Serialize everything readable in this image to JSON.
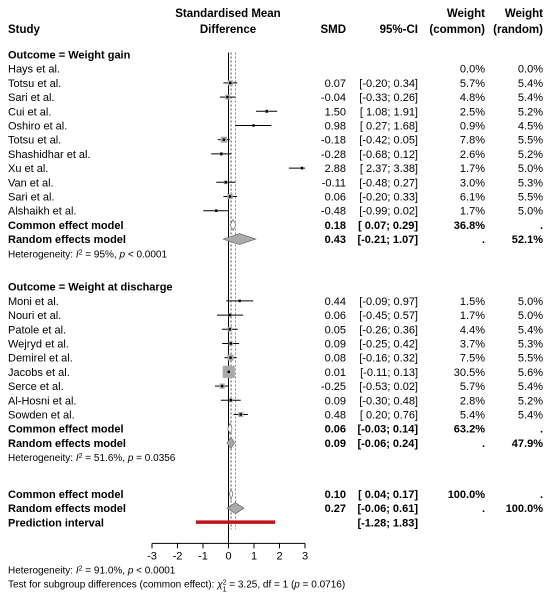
{
  "chart_data": {
    "type": "forest",
    "headers": {
      "study": "Study",
      "effect_line1": "Standardised Mean",
      "effect_line2": "Difference",
      "smd": "SMD",
      "ci": "95%-CI",
      "w_common_line1": "Weight",
      "w_common_line2": "(common)",
      "w_random_line1": "Weight",
      "w_random_line2": "(random)"
    },
    "x_axis": {
      "min": -3,
      "max": 3,
      "ticks": [
        -3,
        -2,
        -1,
        0,
        1,
        2,
        3
      ],
      "tick_label_text": "-3 -2 -1 0 1 2 3",
      "tick_label_note": "overlapping tick labels as rendered: \"-3 0.001-1 0 1 2 3\""
    },
    "groups": [
      {
        "label": "Outcome = Weight gain",
        "studies": [
          {
            "name": "Hays et al.",
            "smd": null,
            "lo": null,
            "hi": null,
            "smd_text": "",
            "ci_text": "",
            "w_common": "0.0%",
            "w_random": "0.0%"
          },
          {
            "name": "Totsu et al.",
            "smd": 0.07,
            "lo": -0.2,
            "hi": 0.34,
            "smd_text": "0.07",
            "ci_text": "[-0.20; 0.34]",
            "w_common": "5.7%",
            "w_random": "5.4%"
          },
          {
            "name": "Sari et al.",
            "smd": -0.04,
            "lo": -0.33,
            "hi": 0.26,
            "smd_text": "-0.04",
            "ci_text": "[-0.33; 0.26]",
            "w_common": "4.8%",
            "w_random": "5.4%"
          },
          {
            "name": "Cui et al.",
            "smd": 1.5,
            "lo": 1.08,
            "hi": 1.91,
            "smd_text": "1.50",
            "ci_text": "[ 1.08; 1.91]",
            "w_common": "2.5%",
            "w_random": "5.2%"
          },
          {
            "name": "Oshiro et al.",
            "smd": 0.98,
            "lo": 0.27,
            "hi": 1.68,
            "smd_text": "0.98",
            "ci_text": "[ 0.27; 1.68]",
            "w_common": "0.9%",
            "w_random": "4.5%"
          },
          {
            "name": "Totsu et al.",
            "smd": -0.18,
            "lo": -0.42,
            "hi": 0.05,
            "smd_text": "-0.18",
            "ci_text": "[-0.42; 0.05]",
            "w_common": "7.8%",
            "w_random": "5.5%"
          },
          {
            "name": "Shashidhar et al.",
            "smd": -0.28,
            "lo": -0.68,
            "hi": 0.12,
            "smd_text": "-0.28",
            "ci_text": "[-0.68; 0.12]",
            "w_common": "2.6%",
            "w_random": "5.2%"
          },
          {
            "name": "Xu et al.",
            "smd": 2.88,
            "lo": 2.37,
            "hi": 3.38,
            "smd_text": "2.88",
            "ci_text": "[ 2.37; 3.38]",
            "w_common": "1.7%",
            "w_random": "5.0%"
          },
          {
            "name": "Van et al.",
            "smd": -0.11,
            "lo": -0.48,
            "hi": 0.27,
            "smd_text": "-0.11",
            "ci_text": "[-0.48; 0.27]",
            "w_common": "3.0%",
            "w_random": "5.3%"
          },
          {
            "name": "Sari et al.",
            "smd": 0.06,
            "lo": -0.2,
            "hi": 0.33,
            "smd_text": "0.06",
            "ci_text": "[-0.20; 0.33]",
            "w_common": "6.1%",
            "w_random": "5.5%"
          },
          {
            "name": "Alshaikh et al.",
            "smd": -0.48,
            "lo": -0.99,
            "hi": 0.02,
            "smd_text": "-0.48",
            "ci_text": "[-0.99; 0.02]",
            "w_common": "1.7%",
            "w_random": "5.0%"
          }
        ],
        "common": {
          "label": "Common effect model",
          "smd": 0.18,
          "lo": 0.07,
          "hi": 0.29,
          "smd_text": "0.18",
          "ci_text": "[ 0.07; 0.29]",
          "w_common": "36.8%",
          "w_random": "."
        },
        "random": {
          "label": "Random effects model",
          "smd": 0.43,
          "lo": -0.21,
          "hi": 1.07,
          "smd_text": "0.43",
          "ci_text": "[-0.21; 1.07]",
          "w_common": ".",
          "w_random": "52.1%"
        },
        "heterogeneity": {
          "prefix": "Heterogeneity: ",
          "i2": "I",
          "i2_value": " = 95%, ",
          "p": "p",
          "p_value": " < 0.0001"
        }
      },
      {
        "label": "Outcome = Weight at discharge",
        "studies": [
          {
            "name": "Moni et al.",
            "smd": 0.44,
            "lo": -0.09,
            "hi": 0.97,
            "smd_text": "0.44",
            "ci_text": "[-0.09; 0.97]",
            "w_common": "1.5%",
            "w_random": "5.0%"
          },
          {
            "name": "Nouri et al.",
            "smd": 0.06,
            "lo": -0.45,
            "hi": 0.57,
            "smd_text": "0.06",
            "ci_text": "[-0.45; 0.57]",
            "w_common": "1.7%",
            "w_random": "5.0%"
          },
          {
            "name": "Patole et al.",
            "smd": 0.05,
            "lo": -0.26,
            "hi": 0.36,
            "smd_text": "0.05",
            "ci_text": "[-0.26; 0.36]",
            "w_common": "4.4%",
            "w_random": "5.4%"
          },
          {
            "name": "Wejryd et al.",
            "smd": 0.09,
            "lo": -0.25,
            "hi": 0.42,
            "smd_text": "0.09",
            "ci_text": "[-0.25; 0.42]",
            "w_common": "3.7%",
            "w_random": "5.3%"
          },
          {
            "name": "Demirel et al.",
            "smd": 0.08,
            "lo": -0.16,
            "hi": 0.32,
            "smd_text": "0.08",
            "ci_text": "[-0.16; 0.32]",
            "w_common": "7.5%",
            "w_random": "5.5%"
          },
          {
            "name": "Jacobs et al.",
            "smd": 0.01,
            "lo": -0.11,
            "hi": 0.13,
            "smd_text": "0.01",
            "ci_text": "[-0.11; 0.13]",
            "w_common": "30.5%",
            "w_random": "5.6%"
          },
          {
            "name": "Serce et al.",
            "smd": -0.25,
            "lo": -0.53,
            "hi": 0.02,
            "smd_text": "-0.25",
            "ci_text": "[-0.53; 0.02]",
            "w_common": "5.7%",
            "w_random": "5.4%"
          },
          {
            "name": "Al-Hosni et al.",
            "smd": 0.09,
            "lo": -0.3,
            "hi": 0.48,
            "smd_text": "0.09",
            "ci_text": "[-0.30; 0.48]",
            "w_common": "2.8%",
            "w_random": "5.2%"
          },
          {
            "name": "Sowden et al.",
            "smd": 0.48,
            "lo": 0.2,
            "hi": 0.76,
            "smd_text": "0.48",
            "ci_text": "[ 0.20; 0.76]",
            "w_common": "5.4%",
            "w_random": "5.4%"
          }
        ],
        "common": {
          "label": "Common effect model",
          "smd": 0.06,
          "lo": -0.03,
          "hi": 0.14,
          "smd_text": "0.06",
          "ci_text": "[-0.03; 0.14]",
          "w_common": "63.2%",
          "w_random": "."
        },
        "random": {
          "label": "Random effects model",
          "smd": 0.09,
          "lo": -0.06,
          "hi": 0.24,
          "smd_text": "0.09",
          "ci_text": "[-0.06; 0.24]",
          "w_common": ".",
          "w_random": "47.9%"
        },
        "heterogeneity": {
          "prefix": "Heterogeneity: ",
          "i2": "I",
          "i2_value": " = 51.6%, ",
          "p": "p",
          "p_value": " = 0.0356"
        }
      }
    ],
    "overall": {
      "common": {
        "label": "Common effect model",
        "smd": 0.1,
        "lo": 0.04,
        "hi": 0.17,
        "smd_text": "0.10",
        "ci_text": "[ 0.04; 0.17]",
        "w_common": "100.0%",
        "w_random": "."
      },
      "random": {
        "label": "Random effects model",
        "smd": 0.27,
        "lo": -0.06,
        "hi": 0.61,
        "smd_text": "0.27",
        "ci_text": "[-0.06; 0.61]",
        "w_common": ".",
        "w_random": "100.0%"
      },
      "prediction": {
        "label": "Prediction interval",
        "lo": -1.28,
        "hi": 1.83,
        "ci_text": "[-1.28; 1.83]"
      }
    },
    "footer": {
      "heterogeneity": {
        "prefix": "Heterogeneity: ",
        "i2": "I",
        "i2_value": " = 91.0%, ",
        "p": "p",
        "p_value": " < 0.0001"
      },
      "test_common": {
        "prefix": "Test for subgroup differences (common effect): ",
        "chi": "χ",
        "sub": "1",
        "value": " = 3.25, df = 1 (",
        "p": "p",
        "p_value": " = 0.0716)"
      },
      "test_random": {
        "prefix": "Test for subgroup differences (random effects): ",
        "chi": "χ",
        "sub": "1",
        "value": " = 1.00, df = 1 (",
        "p": "p",
        "p_value": " = 0.3163)"
      }
    },
    "colors": {
      "study_marker": "#aaaaaa",
      "diamond": "#aaaaaa",
      "prediction": "#c0141c",
      "text": "#000000"
    },
    "reference_line": 0
  }
}
